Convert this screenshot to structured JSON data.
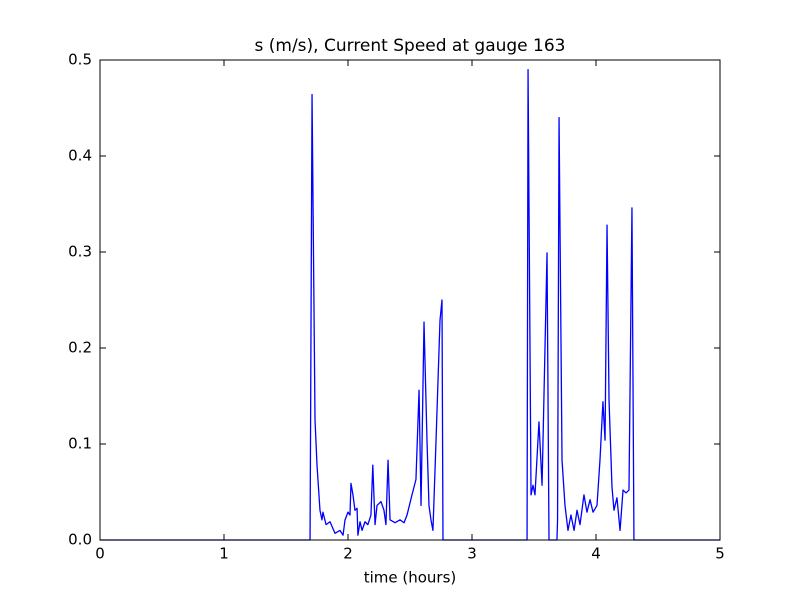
{
  "chart_data": {
    "type": "line",
    "title": "s (m/s), Current Speed at gauge 163",
    "x_label": "time (hours)",
    "xlim": [
      0,
      5
    ],
    "xticks": [
      0,
      1,
      2,
      3,
      4,
      5
    ],
    "ylim": [
      0,
      0.5
    ],
    "yticks": [
      {
        "value": 0,
        "label": "0.0"
      },
      0.1,
      0.2,
      0.3,
      0.4,
      0.5
    ],
    "grid": false,
    "series": [
      {
        "name": "s",
        "color": "#0000ff",
        "x": [
          0,
          1.69,
          1.694,
          1.71,
          1.734,
          1.75,
          1.774,
          1.79,
          1.798,
          1.823,
          1.855,
          1.895,
          1.935,
          1.96,
          1.976,
          2.0,
          2.016,
          2.024,
          2.04,
          2.056,
          2.073,
          2.08,
          2.097,
          2.113,
          2.137,
          2.16,
          2.185,
          2.2,
          2.218,
          2.234,
          2.266,
          2.29,
          2.306,
          2.323,
          2.339,
          2.379,
          2.42,
          2.452,
          2.476,
          2.516,
          2.548,
          2.573,
          2.589,
          2.613,
          2.637,
          2.653,
          2.669,
          2.685,
          2.71,
          2.742,
          2.758,
          2.766,
          3.444,
          3.452,
          3.476,
          3.492,
          3.508,
          3.54,
          3.565,
          3.605,
          3.621,
          3.685,
          3.69,
          3.702,
          3.726,
          3.75,
          3.774,
          3.798,
          3.823,
          3.847,
          3.871,
          3.903,
          3.927,
          3.952,
          3.976,
          4.008,
          4.032,
          4.056,
          4.073,
          4.089,
          4.105,
          4.129,
          4.145,
          4.169,
          4.194,
          4.218,
          4.242,
          4.266,
          4.29,
          4.306,
          5
        ],
        "values": [
          0,
          0,
          0,
          0.464,
          0.125,
          0.078,
          0.031,
          0.021,
          0.029,
          0.016,
          0.019,
          0.007,
          0.01,
          0.005,
          0.021,
          0.029,
          0.026,
          0.059,
          0.047,
          0.031,
          0.033,
          0.005,
          0.019,
          0.01,
          0.019,
          0.016,
          0.026,
          0.078,
          0.016,
          0.036,
          0.04,
          0.031,
          0.016,
          0.083,
          0.021,
          0.018,
          0.021,
          0.018,
          0.026,
          0.047,
          0.063,
          0.156,
          0.036,
          0.227,
          0.104,
          0.036,
          0.021,
          0.01,
          0.104,
          0.229,
          0.25,
          0,
          0,
          0.49,
          0.047,
          0.057,
          0.047,
          0.123,
          0.057,
          0.299,
          0,
          0,
          0.021,
          0.44,
          0.083,
          0.036,
          0.01,
          0.026,
          0.01,
          0.031,
          0.016,
          0.047,
          0.029,
          0.042,
          0.029,
          0.036,
          0.083,
          0.144,
          0.104,
          0.328,
          0.146,
          0.055,
          0.031,
          0.044,
          0.01,
          0.052,
          0.049,
          0.052,
          0.346,
          0,
          0
        ]
      }
    ]
  }
}
